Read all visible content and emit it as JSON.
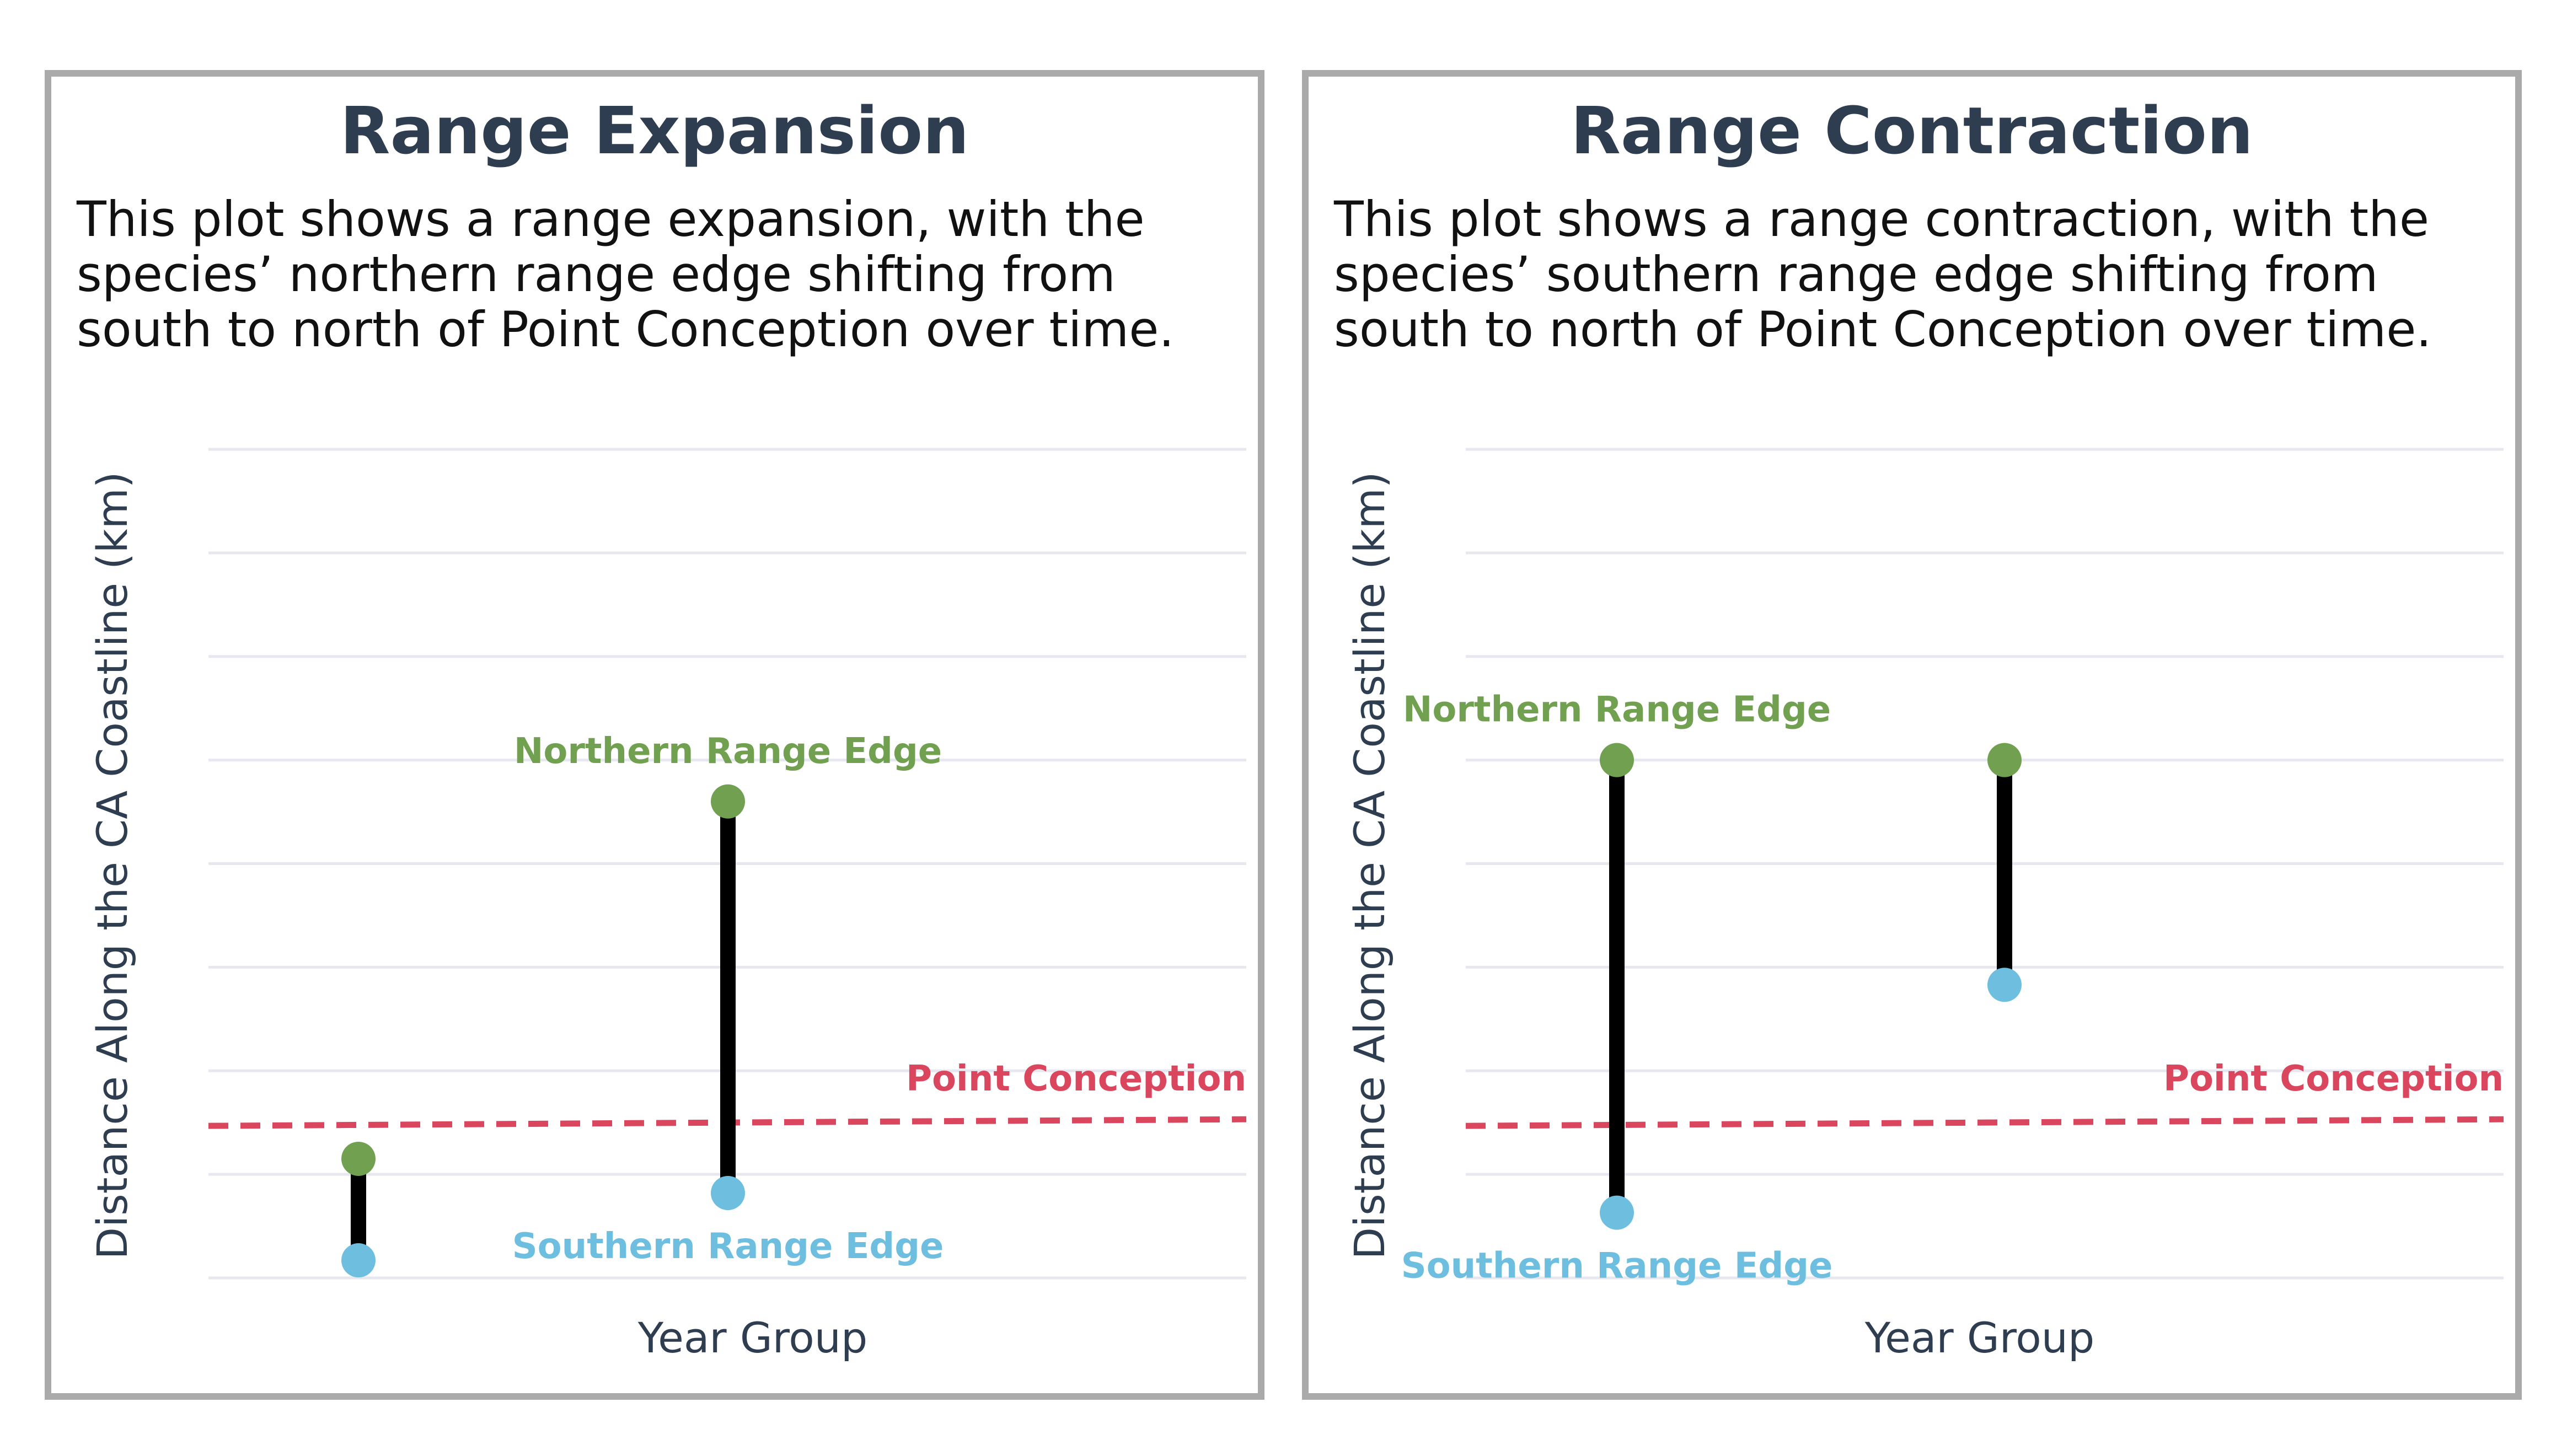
{
  "colors": {
    "frame": "#aaaaaa",
    "title": "#2e3e50",
    "grid": "#e6e7ef",
    "northern": "#70a050",
    "southern": "#6ebedf",
    "reference": "#d9465d",
    "range_bar": "#000000"
  },
  "chart_data": [
    {
      "type": "dumbbell",
      "title": "Range Expansion",
      "subtitle_lines": [
        "This plot shows a range expansion, with the",
        "species’ northern range edge shifting from",
        "south to north of Point Conception over time."
      ],
      "xlabel": "Year Group",
      "ylabel": "Distance Along the CA Coastline (km)",
      "ylim": [
        0,
        8
      ],
      "grid": true,
      "y_tick_labels_shown": false,
      "reference_line": {
        "label": "Point Conception",
        "value": 1.5,
        "style": "dashed"
      },
      "series": [
        {
          "name": "Northern Range Edge",
          "values": [
            1.15,
            4.6
          ]
        },
        {
          "name": "Southern Range Edge",
          "values": [
            0.17,
            0.82
          ]
        }
      ]
    },
    {
      "type": "dumbbell",
      "title": "Range Contraction",
      "subtitle_lines": [
        "This plot shows a range contraction, with the",
        "species’ southern range edge shifting from",
        "south to north of Point Conception over time."
      ],
      "xlabel": "Year Group",
      "ylabel": "Distance Along the CA Coastline (km)",
      "ylim": [
        0,
        8
      ],
      "grid": true,
      "y_tick_labels_shown": false,
      "reference_line": {
        "label": "Point Conception",
        "value": 1.5,
        "style": "dashed"
      },
      "series": [
        {
          "name": "Northern Range Edge",
          "values": [
            5.0,
            5.0
          ]
        },
        {
          "name": "Southern Range Edge",
          "values": [
            0.63,
            2.83
          ]
        }
      ]
    }
  ]
}
